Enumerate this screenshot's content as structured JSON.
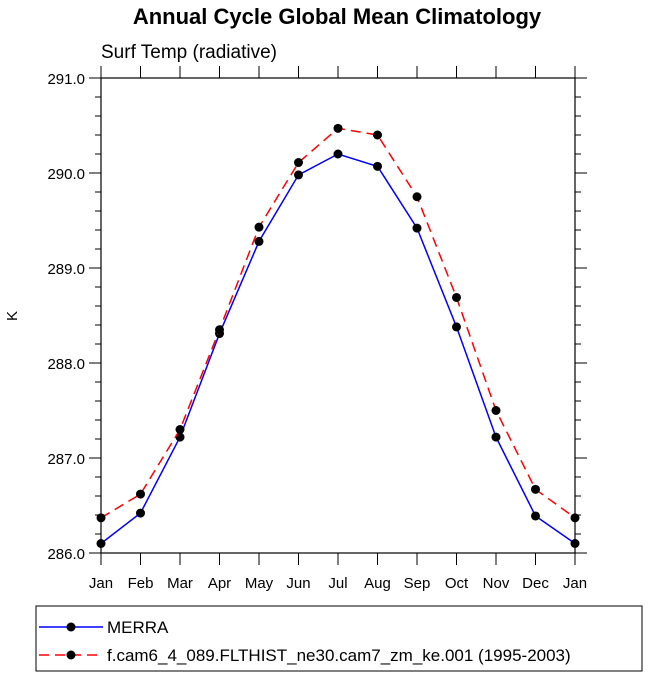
{
  "chart_data": {
    "type": "line",
    "title": "Annual Cycle Global Mean Climatology",
    "subtitle": "Surf Temp (radiative)",
    "xlabel": "",
    "ylabel": "K",
    "categories": [
      "Jan",
      "Feb",
      "Mar",
      "Apr",
      "May",
      "Jun",
      "Jul",
      "Aug",
      "Sep",
      "Oct",
      "Nov",
      "Dec",
      "Jan"
    ],
    "ylim": [
      286.0,
      291.0
    ],
    "yticks": [
      "286.0",
      "287.0",
      "288.0",
      "289.0",
      "290.0",
      "291.0"
    ],
    "series": [
      {
        "name": "MERRA",
        "color": "#0000ff",
        "dash": "solid",
        "values": [
          286.1,
          286.42,
          287.22,
          288.31,
          289.28,
          289.98,
          290.2,
          290.07,
          289.42,
          288.38,
          287.22,
          286.39,
          286.1
        ]
      },
      {
        "name": "f.cam6_4_089.FLTHIST_ne30.cam7_zm_ke.001 (1995-2003)",
        "color": "#ff0000",
        "dash": "dashed",
        "values": [
          286.37,
          286.62,
          287.3,
          288.35,
          289.43,
          290.11,
          290.47,
          290.4,
          289.75,
          288.69,
          287.5,
          286.67,
          286.37
        ]
      }
    ],
    "legend_position": "bottom"
  }
}
